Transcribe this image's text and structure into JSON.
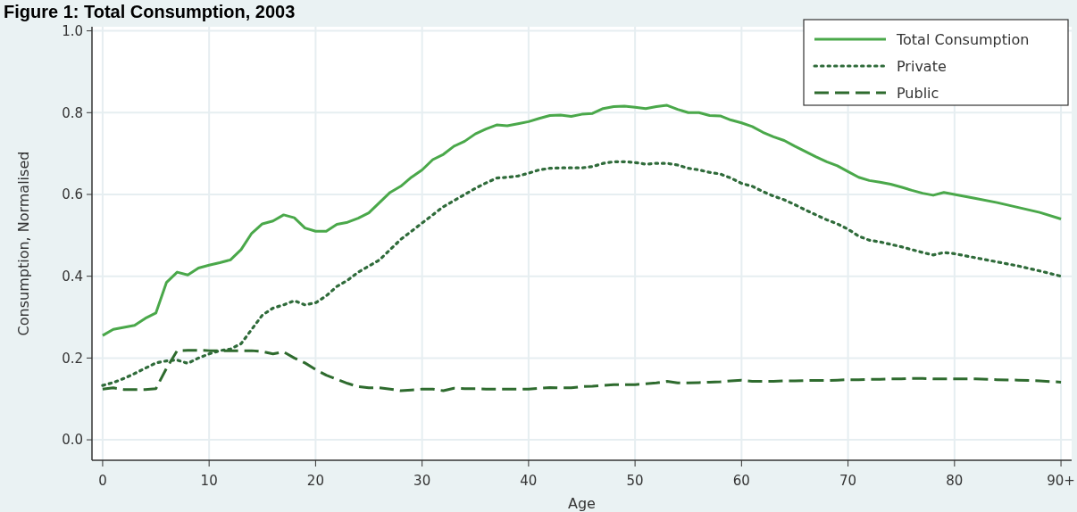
{
  "chart_data": {
    "type": "line",
    "title": "Figure 1: Total Consumption, 2003",
    "xlabel": "Age",
    "ylabel": "Consumption, Normalised",
    "x": [
      0,
      1,
      2,
      3,
      4,
      5,
      6,
      7,
      8,
      9,
      10,
      11,
      12,
      13,
      14,
      15,
      16,
      17,
      18,
      19,
      20,
      21,
      22,
      23,
      24,
      25,
      26,
      27,
      28,
      29,
      30,
      31,
      32,
      33,
      34,
      35,
      36,
      37,
      38,
      39,
      40,
      41,
      42,
      43,
      44,
      45,
      46,
      47,
      48,
      49,
      50,
      51,
      52,
      53,
      54,
      55,
      56,
      57,
      58,
      59,
      60,
      61,
      62,
      63,
      64,
      65,
      66,
      67,
      68,
      69,
      70,
      71,
      72,
      73,
      74,
      75,
      76,
      77,
      78,
      79,
      80,
      82,
      84,
      86,
      88,
      90
    ],
    "series": [
      {
        "name": "Total Consumption",
        "color": "#4aa84a",
        "line_style": "solid",
        "values": [
          0.255,
          0.27,
          0.275,
          0.28,
          0.297,
          0.31,
          0.385,
          0.41,
          0.403,
          0.42,
          0.427,
          0.433,
          0.44,
          0.465,
          0.505,
          0.528,
          0.535,
          0.55,
          0.543,
          0.518,
          0.51,
          0.51,
          0.527,
          0.532,
          0.542,
          0.555,
          0.58,
          0.605,
          0.62,
          0.642,
          0.66,
          0.685,
          0.698,
          0.718,
          0.73,
          0.748,
          0.76,
          0.77,
          0.768,
          0.773,
          0.778,
          0.786,
          0.793,
          0.794,
          0.791,
          0.796,
          0.798,
          0.81,
          0.815,
          0.816,
          0.813,
          0.81,
          0.815,
          0.818,
          0.808,
          0.8,
          0.8,
          0.793,
          0.792,
          0.782,
          0.775,
          0.766,
          0.752,
          0.741,
          0.732,
          0.718,
          0.705,
          0.692,
          0.68,
          0.67,
          0.656,
          0.642,
          0.634,
          0.63,
          0.625,
          0.618,
          0.61,
          0.603,
          0.598,
          0.605,
          0.6,
          0.59,
          0.58,
          0.568,
          0.556,
          0.54
        ]
      },
      {
        "name": "Private",
        "color": "#2f6b3a",
        "line_style": "dotted",
        "values": [
          0.133,
          0.14,
          0.15,
          0.162,
          0.175,
          0.188,
          0.193,
          0.195,
          0.187,
          0.2,
          0.21,
          0.218,
          0.222,
          0.235,
          0.27,
          0.305,
          0.322,
          0.33,
          0.34,
          0.33,
          0.335,
          0.352,
          0.375,
          0.39,
          0.41,
          0.425,
          0.44,
          0.465,
          0.49,
          0.51,
          0.53,
          0.55,
          0.57,
          0.585,
          0.6,
          0.615,
          0.628,
          0.64,
          0.642,
          0.645,
          0.652,
          0.66,
          0.664,
          0.665,
          0.665,
          0.665,
          0.668,
          0.676,
          0.68,
          0.68,
          0.678,
          0.674,
          0.676,
          0.676,
          0.672,
          0.664,
          0.66,
          0.654,
          0.65,
          0.64,
          0.627,
          0.62,
          0.607,
          0.596,
          0.587,
          0.575,
          0.562,
          0.55,
          0.538,
          0.528,
          0.515,
          0.498,
          0.488,
          0.484,
          0.478,
          0.472,
          0.465,
          0.458,
          0.452,
          0.458,
          0.455,
          0.445,
          0.435,
          0.425,
          0.413,
          0.4
        ]
      },
      {
        "name": "Public",
        "color": "#2e6b2e",
        "line_style": "dashed",
        "values": [
          0.124,
          0.127,
          0.123,
          0.123,
          0.123,
          0.125,
          0.175,
          0.218,
          0.219,
          0.219,
          0.218,
          0.218,
          0.218,
          0.218,
          0.218,
          0.216,
          0.21,
          0.215,
          0.2,
          0.188,
          0.172,
          0.158,
          0.148,
          0.138,
          0.13,
          0.127,
          0.127,
          0.124,
          0.12,
          0.122,
          0.124,
          0.124,
          0.12,
          0.126,
          0.125,
          0.125,
          0.124,
          0.124,
          0.124,
          0.124,
          0.124,
          0.126,
          0.128,
          0.127,
          0.127,
          0.13,
          0.131,
          0.133,
          0.135,
          0.135,
          0.135,
          0.137,
          0.139,
          0.143,
          0.139,
          0.139,
          0.14,
          0.141,
          0.142,
          0.144,
          0.146,
          0.143,
          0.143,
          0.143,
          0.144,
          0.144,
          0.145,
          0.145,
          0.145,
          0.146,
          0.147,
          0.147,
          0.148,
          0.148,
          0.149,
          0.149,
          0.15,
          0.15,
          0.149,
          0.149,
          0.149,
          0.149,
          0.147,
          0.146,
          0.144,
          0.141
        ]
      }
    ],
    "xlim": [
      -1,
      91
    ],
    "xticks": [
      0,
      10,
      20,
      30,
      40,
      50,
      60,
      70,
      80,
      {
        "value": 90,
        "label": "90+"
      }
    ],
    "ylim": [
      -0.05,
      1.01
    ],
    "yticks": [
      {
        "value": 0,
        "label": "0.0"
      },
      {
        "value": 0.2,
        "label": "0.2"
      },
      {
        "value": 0.4,
        "label": "0.4"
      },
      {
        "value": 0.6,
        "label": "0.6"
      },
      {
        "value": 0.8,
        "label": "0.8"
      },
      {
        "value": 1,
        "label": "1.0"
      }
    ],
    "grid": true,
    "legend": "top right"
  }
}
